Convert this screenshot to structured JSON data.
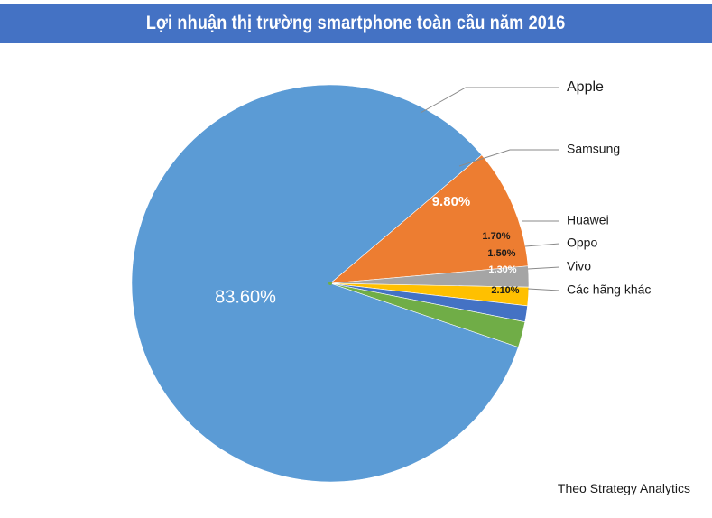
{
  "header": {
    "title": "Lợi nhuận thị trường smartphone toàn cầu năm 2016"
  },
  "source": "Theo Strategy Analytics",
  "chart_data": {
    "type": "pie",
    "title": "Lợi nhuận thị trường smartphone toàn cầu năm 2016",
    "slices": [
      {
        "name": "Apple",
        "value": 83.6,
        "label": "83.60%",
        "color": "#5b9bd5"
      },
      {
        "name": "Samsung",
        "value": 9.8,
        "label": "9.80%",
        "color": "#ed7d31"
      },
      {
        "name": "Huawei",
        "value": 1.7,
        "label": "1.70%",
        "color": "#a5a5a5"
      },
      {
        "name": "Oppo",
        "value": 1.5,
        "label": "1.50%",
        "color": "#ffc000"
      },
      {
        "name": "Vivo",
        "value": 1.3,
        "label": "1.30%",
        "color": "#4472c4"
      },
      {
        "name": "Các hãng khác",
        "value": 2.1,
        "label": "2.10%",
        "color": "#70ad47"
      }
    ]
  }
}
